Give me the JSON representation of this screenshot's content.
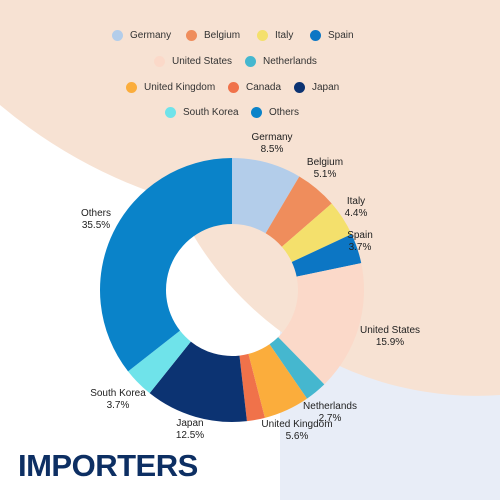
{
  "colors": {
    "background_peach": "#f7e2d3",
    "background_blue": "#e8edf7",
    "title": "#0d2f63"
  },
  "title": "IMPORTERS",
  "chart_data": {
    "type": "pie",
    "donut": true,
    "legend_position": "top",
    "categories": [
      "Germany",
      "Belgium",
      "Italy",
      "Spain",
      "United States",
      "Netherlands",
      "United Kingdom",
      "Canada",
      "Japan",
      "South Korea",
      "Others"
    ],
    "values": [
      8.5,
      5.1,
      4.4,
      3.7,
      15.9,
      2.7,
      5.6,
      2.2,
      12.5,
      3.7,
      35.5
    ],
    "labels": [
      "8.5%",
      "5.1%",
      "4.4%",
      "3.7%",
      "15.9%",
      "2.7%",
      "5.6%",
      "",
      "12.5%",
      "3.7%",
      "35.5%"
    ],
    "colors": [
      "#b3cdea",
      "#ef8d5c",
      "#f4e06c",
      "#0c76c4",
      "#fbd9c9",
      "#45b7cf",
      "#fbad3c",
      "#f0724a",
      "#0c3372",
      "#6fe3ea",
      "#0a83c9"
    ]
  }
}
